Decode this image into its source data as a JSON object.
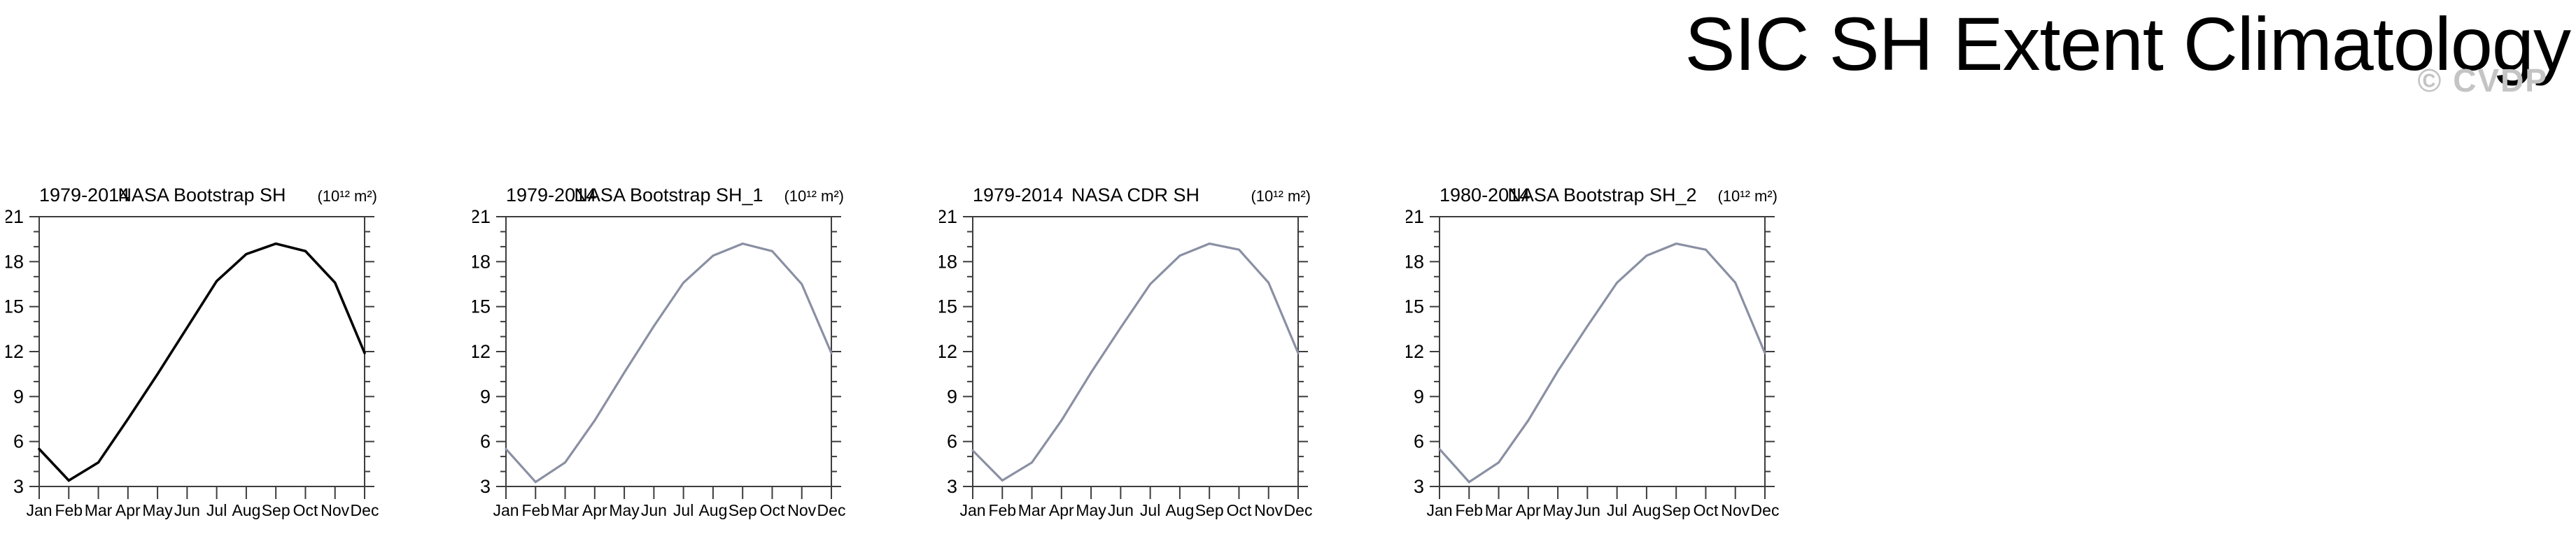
{
  "header": {
    "title": "SIC SH Extent Climatology",
    "watermark": "© CVDP"
  },
  "colors": {
    "reference_line": "#000000",
    "obs_line": "#8a90a3",
    "axis_frame": "#3d3d3d",
    "text": "#000000",
    "watermark": "#c4c4c4",
    "background": "#ffffff"
  },
  "chart_data": [
    {
      "type": "line",
      "period": "1979-2014",
      "title": "NASA Bootstrap SH",
      "units": "(10¹² m²)",
      "categories": [
        "Jan",
        "Feb",
        "Mar",
        "Apr",
        "May",
        "Jun",
        "Jul",
        "Aug",
        "Sep",
        "Oct",
        "Nov",
        "Dec"
      ],
      "values": [
        5.5,
        3.4,
        4.6,
        7.5,
        10.5,
        13.6,
        16.7,
        18.5,
        19.2,
        18.7,
        16.6,
        11.9
      ],
      "ylim": [
        3,
        21
      ],
      "yticks": [
        3,
        6,
        9,
        12,
        15,
        18,
        21
      ],
      "minor_tick_step": 1,
      "grid": false,
      "legend": "none",
      "line_role": "reference"
    },
    {
      "type": "line",
      "period": "1979-2014",
      "title": "NASA Bootstrap SH_1",
      "units": "(10¹² m²)",
      "categories": [
        "Jan",
        "Feb",
        "Mar",
        "Apr",
        "May",
        "Jun",
        "Jul",
        "Aug",
        "Sep",
        "Oct",
        "Nov",
        "Dec"
      ],
      "values": [
        5.5,
        3.3,
        4.6,
        7.4,
        10.6,
        13.7,
        16.6,
        18.4,
        19.2,
        18.7,
        16.5,
        11.9
      ],
      "ylim": [
        3,
        21
      ],
      "yticks": [
        3,
        6,
        9,
        12,
        15,
        18,
        21
      ],
      "minor_tick_step": 1,
      "grid": false,
      "legend": "none",
      "line_role": "obs"
    },
    {
      "type": "line",
      "period": "1979-2014",
      "title": "NASA CDR SH",
      "units": "(10¹² m²)",
      "categories": [
        "Jan",
        "Feb",
        "Mar",
        "Apr",
        "May",
        "Jun",
        "Jul",
        "Aug",
        "Sep",
        "Oct",
        "Nov",
        "Dec"
      ],
      "values": [
        5.4,
        3.4,
        4.6,
        7.4,
        10.6,
        13.6,
        16.5,
        18.4,
        19.2,
        18.8,
        16.6,
        11.9
      ],
      "ylim": [
        3,
        21
      ],
      "yticks": [
        3,
        6,
        9,
        12,
        15,
        18,
        21
      ],
      "minor_tick_step": 1,
      "grid": false,
      "legend": "none",
      "line_role": "obs"
    },
    {
      "type": "line",
      "period": "1980-2014",
      "title": "NASA Bootstrap SH_2",
      "units": "(10¹² m²)",
      "categories": [
        "Jan",
        "Feb",
        "Mar",
        "Apr",
        "May",
        "Jun",
        "Jul",
        "Aug",
        "Sep",
        "Oct",
        "Nov",
        "Dec"
      ],
      "values": [
        5.5,
        3.3,
        4.6,
        7.4,
        10.7,
        13.7,
        16.6,
        18.4,
        19.2,
        18.8,
        16.6,
        11.9
      ],
      "ylim": [
        3,
        21
      ],
      "yticks": [
        3,
        6,
        9,
        12,
        15,
        18,
        21
      ],
      "minor_tick_step": 1,
      "grid": false,
      "legend": "none",
      "line_role": "obs"
    }
  ]
}
